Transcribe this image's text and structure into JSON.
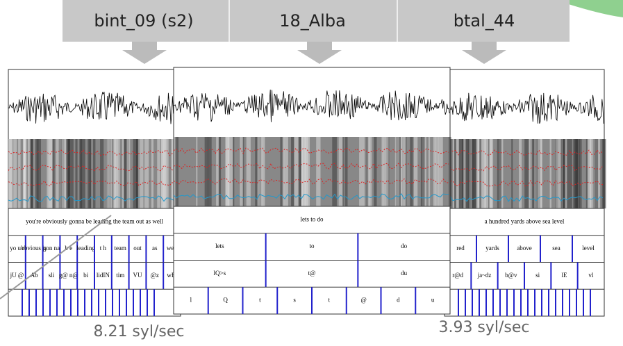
{
  "header": {
    "labels": [
      "bint_09 (s2)",
      "18_Alba",
      "btal_44"
    ]
  },
  "panels": [
    {
      "sentence": "you're obviously gonna be leading the team out as well",
      "words": [
        "yo u'r",
        "obvious ly",
        "gon na",
        "b e",
        "leading",
        "t h",
        "team",
        "out",
        "as",
        "well"
      ],
      "phones": [
        "jU @",
        "Ab",
        "sli",
        "g@ n@",
        "bi",
        "lidIN",
        "tim",
        "VU",
        "@z",
        "wEl"
      ]
    },
    {
      "sentence": "lets to do",
      "words": [
        "lets",
        "to",
        "do"
      ],
      "phones": [
        "lQ>s",
        "t@",
        "du"
      ],
      "segments": [
        "l",
        "Q",
        "t",
        "s",
        "t",
        "@",
        "d",
        "u"
      ]
    },
    {
      "sentence": "a hundred yards above sea level",
      "words": [
        "red",
        "yards",
        "above",
        "sea",
        "level"
      ],
      "phones": [
        "r@d",
        "ja~dz",
        "b@v",
        "si",
        "lE",
        "vl"
      ]
    }
  ],
  "rates": [
    "8.21 syl/sec",
    "3.93 syl/sec"
  ]
}
